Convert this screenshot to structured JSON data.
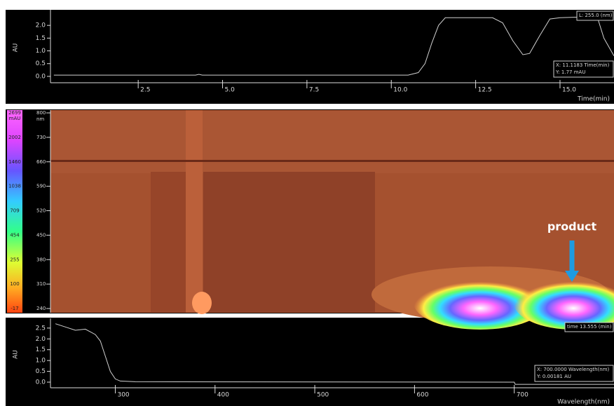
{
  "chart_data": [
    {
      "type": "line",
      "y_label": "AU",
      "x_label": "Time(min)",
      "color": "#d0d0d0",
      "x": [
        0,
        4.2,
        4.3,
        4.4,
        10.5,
        10.8,
        11.0,
        11.2,
        11.4,
        11.6,
        13.0,
        13.3,
        13.6,
        13.9,
        14.1,
        14.4,
        14.7,
        15.0,
        16.1,
        16.3,
        16.6
      ],
      "values": [
        0.05,
        0.05,
        0.08,
        0.05,
        0.05,
        0.15,
        0.5,
        1.3,
        2.0,
        2.3,
        2.3,
        2.1,
        1.4,
        0.85,
        0.9,
        1.6,
        2.25,
        2.3,
        2.35,
        1.5,
        0.8
      ],
      "xlim": [
        -0.1,
        16.6
      ],
      "ylim": [
        -0.25,
        2.5
      ],
      "xticks": [
        2.5,
        {
          "value": 5,
          "label": "5.0"
        },
        7.5,
        {
          "value": 10,
          "label": "10.0"
        },
        12.5,
        {
          "value": 15,
          "label": "15.0"
        }
      ],
      "yticks": [
        {
          "value": 0,
          "label": "0.0"
        },
        0.5,
        {
          "value": 1,
          "label": "1.0"
        },
        1.5,
        {
          "value": 2,
          "label": "2.0"
        }
      ],
      "annotations": [
        [
          "L: 255.0 (nm)"
        ],
        [
          "X: 11.1183 Time(min)",
          "Y: 1.77 mAU"
        ]
      ]
    },
    {
      "type": "contour",
      "colorbar_unit": "mAU",
      "wavelength_unit": "nm",
      "colorbar_ticks": [
        2699,
        2002,
        1460,
        1038,
        709,
        454,
        255,
        100,
        -17
      ],
      "wavelength_ticks": [
        800,
        730,
        660,
        590,
        520,
        450,
        380,
        310,
        240
      ],
      "ylim": [
        240,
        800
      ],
      "annotation": "product"
    },
    {
      "type": "line",
      "y_label": "AU",
      "x_label": "Wavelength(nm)",
      "color": "#d0d0d0",
      "x": [
        240,
        250,
        260,
        270,
        280,
        285,
        290,
        295,
        300,
        305,
        320,
        700,
        701,
        800
      ],
      "values": [
        2.7,
        2.55,
        2.4,
        2.45,
        2.2,
        1.9,
        1.2,
        0.5,
        0.15,
        0.05,
        0.02,
        0.0,
        -0.1,
        -0.1
      ],
      "xlim": [
        235,
        800
      ],
      "ylim": [
        -0.26,
        2.82
      ],
      "xticks": [
        300,
        400,
        500,
        600,
        700
      ],
      "yticks": [
        {
          "value": 0,
          "label": "0.0"
        },
        0.5,
        {
          "value": 1,
          "label": "1.0"
        },
        1.5,
        {
          "value": 2,
          "label": "2.0"
        },
        2.5
      ],
      "annotations": [
        [
          "time 13.555 (min)"
        ],
        [
          "X: 700.0000 Wavelength(nm)",
          "Y: 0.00181 AU"
        ]
      ]
    }
  ]
}
